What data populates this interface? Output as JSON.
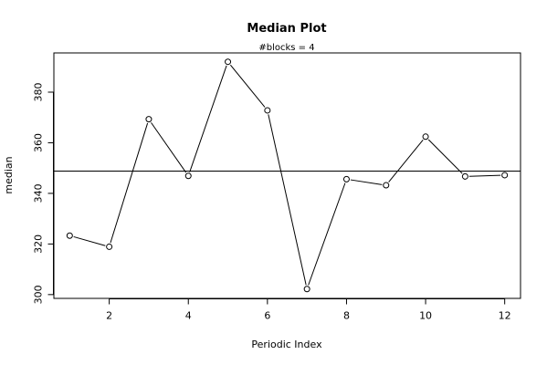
{
  "chart_data": {
    "type": "line",
    "title": "Median Plot",
    "subtitle": "#blocks =  4",
    "xlabel": "Periodic Index",
    "ylabel": "median",
    "xlim": [
      0.6,
      12.4
    ],
    "ylim": [
      298.5,
      395.5
    ],
    "x_ticks": [
      2,
      4,
      6,
      8,
      10,
      12
    ],
    "y_ticks": [
      300,
      320,
      340,
      360,
      380
    ],
    "grid": false,
    "legend": "none",
    "reference_line": 348.8,
    "series": [
      {
        "x": [
          1,
          2,
          3,
          4,
          5,
          6,
          7,
          8,
          9,
          10,
          11,
          12
        ],
        "values": [
          323.3,
          318.9,
          369.3,
          346.9,
          392.0,
          372.8,
          302.2,
          345.6,
          343.2,
          362.4,
          346.7,
          347.2
        ]
      }
    ],
    "colors": {
      "line": "#000000",
      "marker_fill": "#ffffff",
      "marker_stroke": "#000000"
    }
  }
}
